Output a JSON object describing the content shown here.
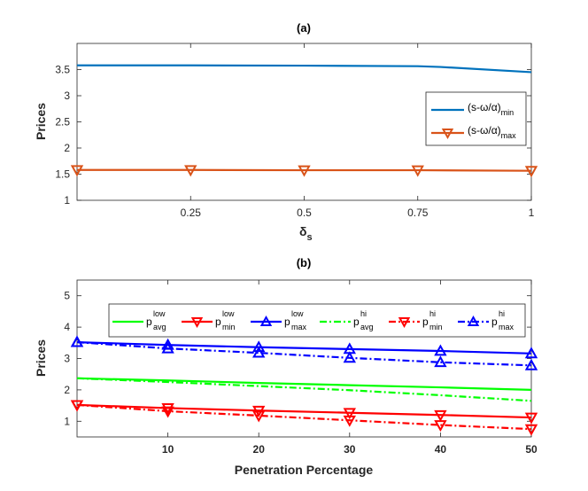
{
  "chart_data": [
    {
      "id": "a",
      "type": "line",
      "title": "(a)",
      "xlabel": "δ",
      "xlabel_sub": "s",
      "ylabel": "Prices",
      "xlim": [
        0,
        1
      ],
      "ylim": [
        1,
        4
      ],
      "xticks": [
        0.25,
        0.5,
        0.75,
        1
      ],
      "xtick_labels": [
        "0.25",
        "0.5",
        "0.75",
        "1"
      ],
      "yticks": [
        1,
        1.5,
        2,
        2.5,
        3,
        3.5
      ],
      "ytick_labels": [
        "1",
        "1.5",
        "2",
        "2.5",
        "3",
        "3.5"
      ],
      "legend_position": "right",
      "series": [
        {
          "name": "(s-ω/α)min",
          "label_main": "(s-ω/α)",
          "label_sub": "min",
          "color": "#0072BD",
          "marker": "none",
          "dash": "solid",
          "x": [
            0,
            0.25,
            0.5,
            0.75,
            0.8,
            1
          ],
          "values": [
            3.58,
            3.58,
            3.575,
            3.565,
            3.55,
            3.45
          ]
        },
        {
          "name": "(s-ω/α)max",
          "label_main": "(s-ω/α)",
          "label_sub": "max",
          "color": "#D95319",
          "marker": "triangle-down",
          "dash": "solid",
          "x": [
            0,
            0.25,
            0.5,
            0.75,
            1
          ],
          "values": [
            1.58,
            1.58,
            1.575,
            1.575,
            1.565
          ]
        }
      ]
    },
    {
      "id": "b",
      "type": "line",
      "title": "(b)",
      "xlabel": "Penetration Percentage",
      "ylabel": "Prices",
      "xlim": [
        0,
        50
      ],
      "ylim": [
        0.5,
        5.5
      ],
      "xticks": [
        10,
        20,
        30,
        40,
        50
      ],
      "xtick_labels": [
        "10",
        "20",
        "30",
        "40",
        "50"
      ],
      "yticks": [
        1,
        2,
        3,
        4,
        5
      ],
      "ytick_labels": [
        "1",
        "2",
        "3",
        "4",
        "5"
      ],
      "legend_position": "top",
      "series": [
        {
          "name": "p_avg^low",
          "label_main": "p",
          "label_sup": "low",
          "label_sub": "avg",
          "color": "#00FF00",
          "marker": "none",
          "dash": "solid",
          "x": [
            0,
            10,
            20,
            30,
            40,
            50
          ],
          "values": [
            2.37,
            2.3,
            2.22,
            2.15,
            2.08,
            2.0
          ]
        },
        {
          "name": "p_min^low",
          "label_main": "p",
          "label_sup": "low",
          "label_sub": "min",
          "color": "#FF0000",
          "marker": "triangle-down",
          "dash": "solid",
          "x": [
            0,
            10,
            20,
            30,
            40,
            50
          ],
          "values": [
            1.52,
            1.42,
            1.34,
            1.27,
            1.2,
            1.12
          ]
        },
        {
          "name": "p_max^low",
          "label_main": "p",
          "label_sup": "low",
          "label_sub": "max",
          "color": "#0000FF",
          "marker": "triangle-up",
          "dash": "solid",
          "x": [
            0,
            10,
            20,
            30,
            40,
            50
          ],
          "values": [
            3.52,
            3.43,
            3.36,
            3.3,
            3.24,
            3.16
          ]
        },
        {
          "name": "p_avg^hi",
          "label_main": "p",
          "label_sup": "hi",
          "label_sub": "avg",
          "color": "#00FF00",
          "marker": "none",
          "dash": "dashdot",
          "x": [
            0,
            10,
            20,
            30,
            40,
            50
          ],
          "values": [
            2.37,
            2.25,
            2.12,
            1.99,
            1.83,
            1.65
          ]
        },
        {
          "name": "p_min^hi",
          "label_main": "p",
          "label_sup": "hi",
          "label_sub": "min",
          "color": "#FF0000",
          "marker": "triangle-down",
          "dash": "dashdot",
          "x": [
            0,
            10,
            20,
            30,
            40,
            50
          ],
          "values": [
            1.52,
            1.32,
            1.18,
            1.03,
            0.88,
            0.75
          ]
        },
        {
          "name": "p_max^hi",
          "label_main": "p",
          "label_sup": "hi",
          "label_sub": "max",
          "color": "#0000FF",
          "marker": "triangle-up",
          "dash": "dashdot",
          "x": [
            0,
            10,
            20,
            30,
            40,
            50
          ],
          "values": [
            3.52,
            3.32,
            3.18,
            3.02,
            2.88,
            2.78
          ]
        }
      ]
    }
  ]
}
